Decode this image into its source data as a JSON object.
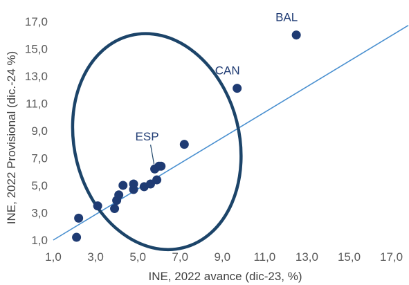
{
  "chart_data": {
    "type": "scatter",
    "title": "",
    "xlabel": "INE, 2022 avance (dic-23, %)",
    "ylabel": "INE, 2022 Provisional (dic.-24 %)",
    "xlim": [
      1.0,
      17.8
    ],
    "ylim": [
      1.0,
      17.8
    ],
    "x_ticks": [
      "1,0",
      "3,0",
      "5,0",
      "7,0",
      "9,0",
      "11,0",
      "13,0",
      "15,0",
      "17,0"
    ],
    "y_ticks": [
      "1,0",
      "3,0",
      "5,0",
      "7,0",
      "9,0",
      "11,0",
      "13,0",
      "15,0",
      "17,0"
    ],
    "grid": false,
    "points": [
      {
        "x": 2.1,
        "y": 1.2
      },
      {
        "x": 2.2,
        "y": 2.6
      },
      {
        "x": 3.1,
        "y": 3.5
      },
      {
        "x": 3.9,
        "y": 3.3
      },
      {
        "x": 4.0,
        "y": 3.9
      },
      {
        "x": 4.1,
        "y": 4.3
      },
      {
        "x": 4.3,
        "y": 5.0
      },
      {
        "x": 4.8,
        "y": 4.7
      },
      {
        "x": 4.8,
        "y": 5.1
      },
      {
        "x": 5.3,
        "y": 4.9
      },
      {
        "x": 5.6,
        "y": 5.1
      },
      {
        "x": 5.8,
        "y": 6.2
      },
      {
        "x": 5.9,
        "y": 5.4
      },
      {
        "x": 6.0,
        "y": 6.4
      },
      {
        "x": 6.1,
        "y": 6.4
      },
      {
        "x": 7.2,
        "y": 8.0
      },
      {
        "x": 9.7,
        "y": 12.1,
        "label": "CAN"
      },
      {
        "x": 12.5,
        "y": 16.0,
        "label": "BAL"
      }
    ],
    "annotations": [
      {
        "text": "ESP",
        "x": 5.8,
        "y": 6.2
      }
    ],
    "reference_line": {
      "from": [
        1.0,
        1.0
      ],
      "to": [
        17.8,
        16.7
      ]
    },
    "highlight_ellipse": {
      "cx": 5.9,
      "cy": 8.2,
      "rx": 3.9,
      "ry": 8.0,
      "angle": -14
    },
    "colors": {
      "point": "#1f3b73",
      "line": "#4a90d0",
      "ellipse": "#1c4469",
      "text": "#404040",
      "label": "#1f3b73"
    }
  }
}
